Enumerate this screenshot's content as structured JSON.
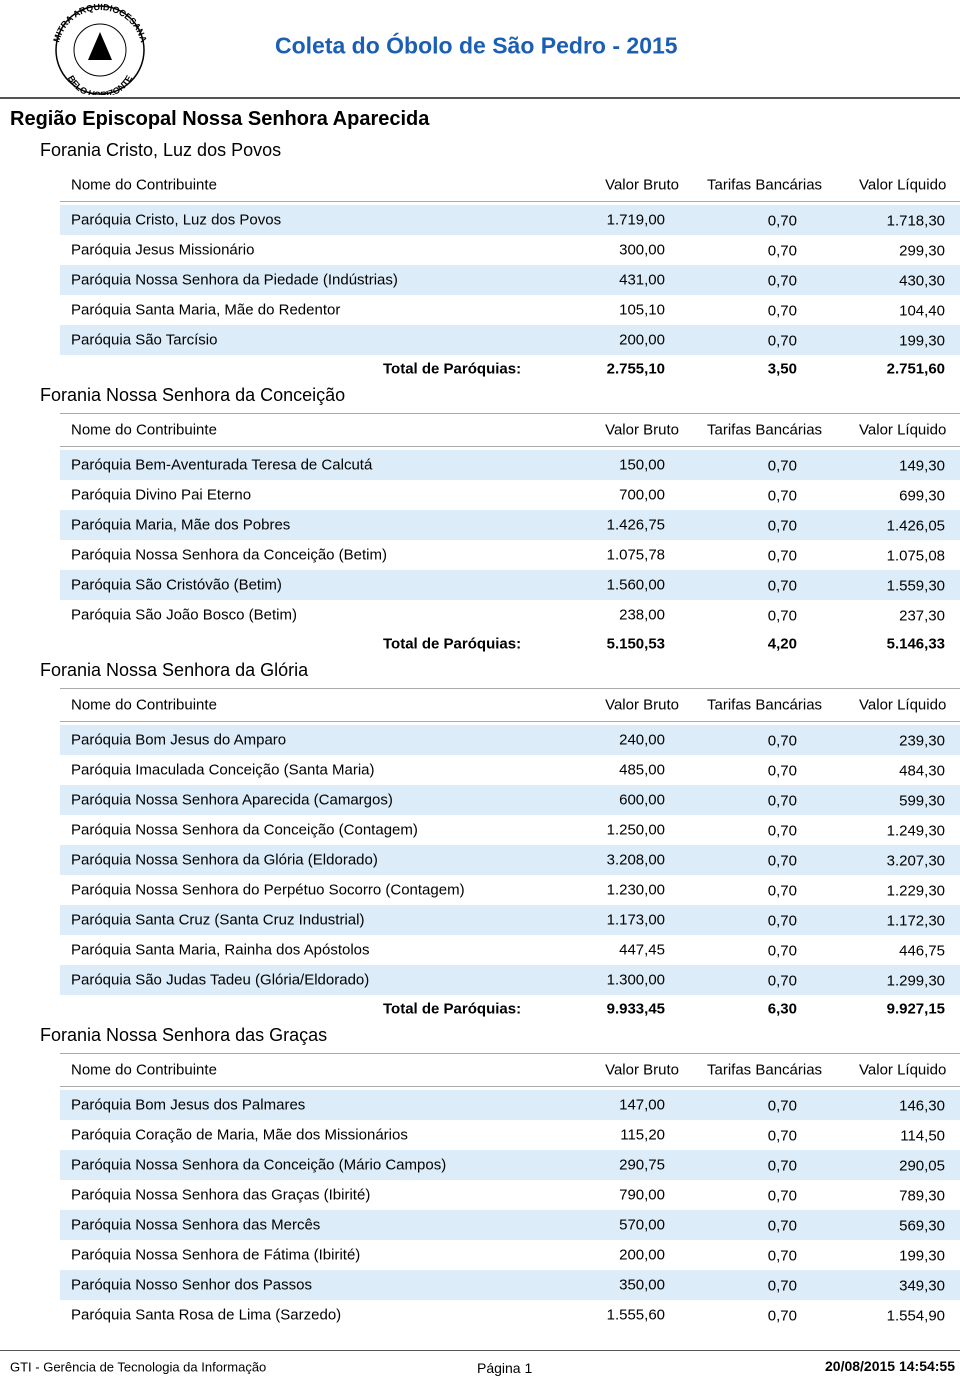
{
  "header": {
    "title": "Coleta do Óbolo de São Pedro - 2015",
    "logo_top": "MITRA ARQUIDIOCESANA",
    "logo_bottom": "BELO HORIZONTE"
  },
  "region": "Região Episcopal Nossa Senhora Aparecida",
  "columns": [
    "Nome do Contribuinte",
    "Valor Bruto",
    "Tarifas Bancárias",
    "Valor Líquido"
  ],
  "total_label": "Total de Paróquias:",
  "foranias": [
    {
      "name": "Forania Cristo, Luz dos Povos",
      "rows": [
        [
          "Paróquia Cristo, Luz dos Povos",
          "1.719,00",
          "0,70",
          "1.718,30"
        ],
        [
          "Paróquia Jesus Missionário",
          "300,00",
          "0,70",
          "299,30"
        ],
        [
          "Paróquia Nossa Senhora da Piedade (Indústrias)",
          "431,00",
          "0,70",
          "430,30"
        ],
        [
          "Paróquia Santa Maria, Mãe do Redentor",
          "105,10",
          "0,70",
          "104,40"
        ],
        [
          "Paróquia São Tarcísio",
          "200,00",
          "0,70",
          "199,30"
        ]
      ],
      "totals": [
        "2.755,10",
        "3,50",
        "2.751,60"
      ]
    },
    {
      "name": "Forania Nossa Senhora da Conceição",
      "rows": [
        [
          "Paróquia Bem-Aventurada Teresa de Calcutá",
          "150,00",
          "0,70",
          "149,30"
        ],
        [
          "Paróquia Divino Pai Eterno",
          "700,00",
          "0,70",
          "699,30"
        ],
        [
          "Paróquia Maria, Mãe dos Pobres",
          "1.426,75",
          "0,70",
          "1.426,05"
        ],
        [
          "Paróquia Nossa Senhora da Conceição (Betim)",
          "1.075,78",
          "0,70",
          "1.075,08"
        ],
        [
          "Paróquia São Cristóvão (Betim)",
          "1.560,00",
          "0,70",
          "1.559,30"
        ],
        [
          "Paróquia São João Bosco (Betim)",
          "238,00",
          "0,70",
          "237,30"
        ]
      ],
      "totals": [
        "5.150,53",
        "4,20",
        "5.146,33"
      ]
    },
    {
      "name": "Forania Nossa Senhora da Glória",
      "rows": [
        [
          "Paróquia Bom Jesus do Amparo",
          "240,00",
          "0,70",
          "239,30"
        ],
        [
          "Paróquia Imaculada Conceição (Santa Maria)",
          "485,00",
          "0,70",
          "484,30"
        ],
        [
          "Paróquia Nossa Senhora Aparecida (Camargos)",
          "600,00",
          "0,70",
          "599,30"
        ],
        [
          "Paróquia Nossa Senhora da Conceição (Contagem)",
          "1.250,00",
          "0,70",
          "1.249,30"
        ],
        [
          "Paróquia Nossa Senhora da Glória (Eldorado)",
          "3.208,00",
          "0,70",
          "3.207,30"
        ],
        [
          "Paróquia Nossa Senhora do Perpétuo Socorro (Contagem)",
          "1.230,00",
          "0,70",
          "1.229,30"
        ],
        [
          "Paróquia Santa Cruz (Santa Cruz Industrial)",
          "1.173,00",
          "0,70",
          "1.172,30"
        ],
        [
          "Paróquia Santa Maria, Rainha dos Apóstolos",
          "447,45",
          "0,70",
          "446,75"
        ],
        [
          "Paróquia São Judas Tadeu (Glória/Eldorado)",
          "1.300,00",
          "0,70",
          "1.299,30"
        ]
      ],
      "totals": [
        "9.933,45",
        "6,30",
        "9.927,15"
      ]
    },
    {
      "name": "Forania Nossa Senhora das Graças",
      "rows": [
        [
          "Paróquia Bom Jesus dos Palmares",
          "147,00",
          "0,70",
          "146,30"
        ],
        [
          "Paróquia Coração de Maria, Mãe dos Missionários",
          "115,20",
          "0,70",
          "114,50"
        ],
        [
          "Paróquia Nossa Senhora da Conceição (Mário Campos)",
          "290,75",
          "0,70",
          "290,05"
        ],
        [
          "Paróquia Nossa Senhora das Graças (Ibirité)",
          "790,00",
          "0,70",
          "789,30"
        ],
        [
          "Paróquia Nossa Senhora das Mercês",
          "570,00",
          "0,70",
          "569,30"
        ],
        [
          "Paróquia Nossa Senhora de Fátima (Ibirité)",
          "200,00",
          "0,70",
          "199,30"
        ],
        [
          "Paróquia Nosso Senhor dos Passos",
          "350,00",
          "0,70",
          "349,30"
        ],
        [
          "Paróquia Santa Rosa de Lima (Sarzedo)",
          "1.555,60",
          "0,70",
          "1.554,90"
        ]
      ]
    }
  ],
  "footer": {
    "left": "GTI - Gerência de Tecnologia da Informação",
    "center": "Página 1",
    "right": "20/08/2015 14:54:55"
  }
}
